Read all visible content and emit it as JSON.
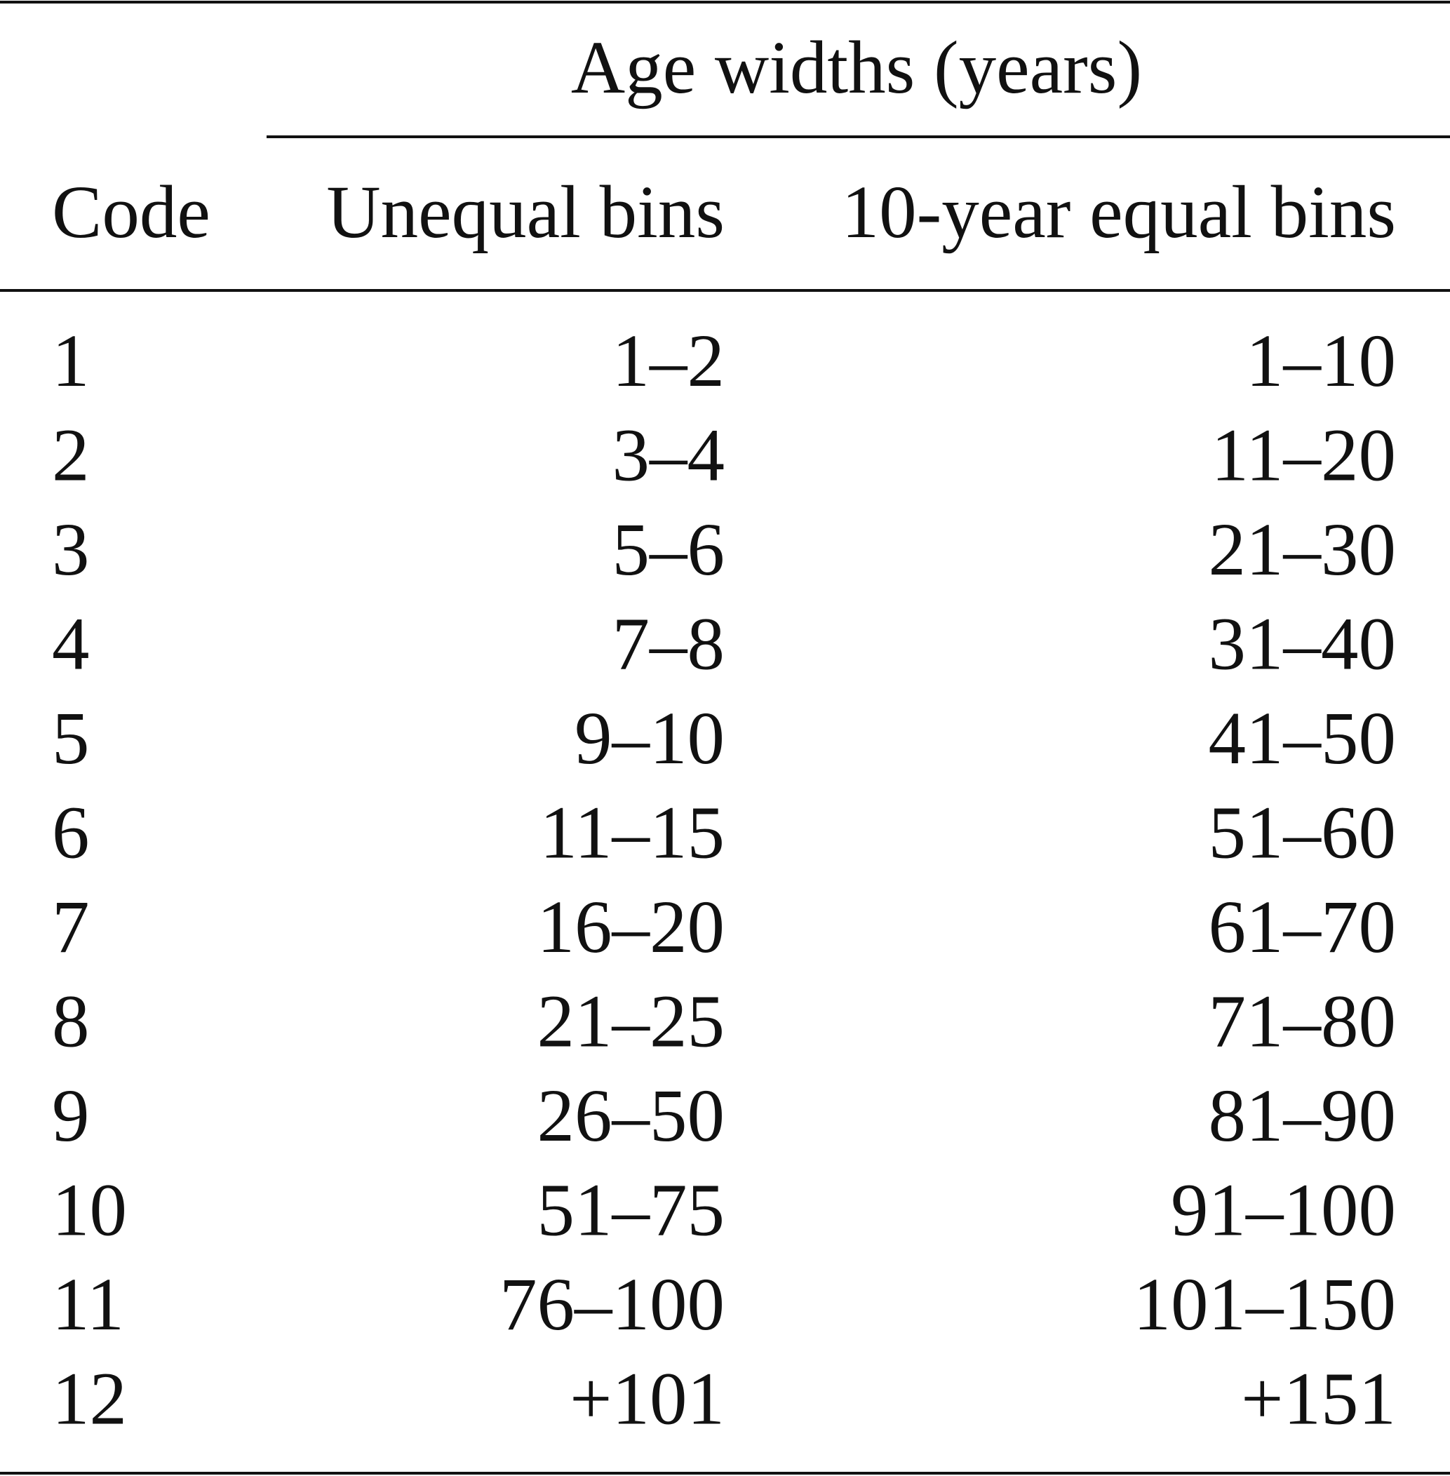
{
  "table": {
    "group_header": "Age widths (years)",
    "columns": [
      "Code",
      "Unequal bins",
      "10-year equal bins"
    ],
    "rows": [
      [
        "1",
        "1–2",
        "1–10"
      ],
      [
        "2",
        "3–4",
        "11–20"
      ],
      [
        "3",
        "5–6",
        "21–30"
      ],
      [
        "4",
        "7–8",
        "31–40"
      ],
      [
        "5",
        "9–10",
        "41–50"
      ],
      [
        "6",
        "11–15",
        "51–60"
      ],
      [
        "7",
        "16–20",
        "61–70"
      ],
      [
        "8",
        "21–25",
        "71–80"
      ],
      [
        "9",
        "26–50",
        "81–90"
      ],
      [
        "10",
        "51–75",
        "91–100"
      ],
      [
        "11",
        "76–100",
        "101–150"
      ],
      [
        "12",
        "+101",
        "+151"
      ]
    ]
  }
}
